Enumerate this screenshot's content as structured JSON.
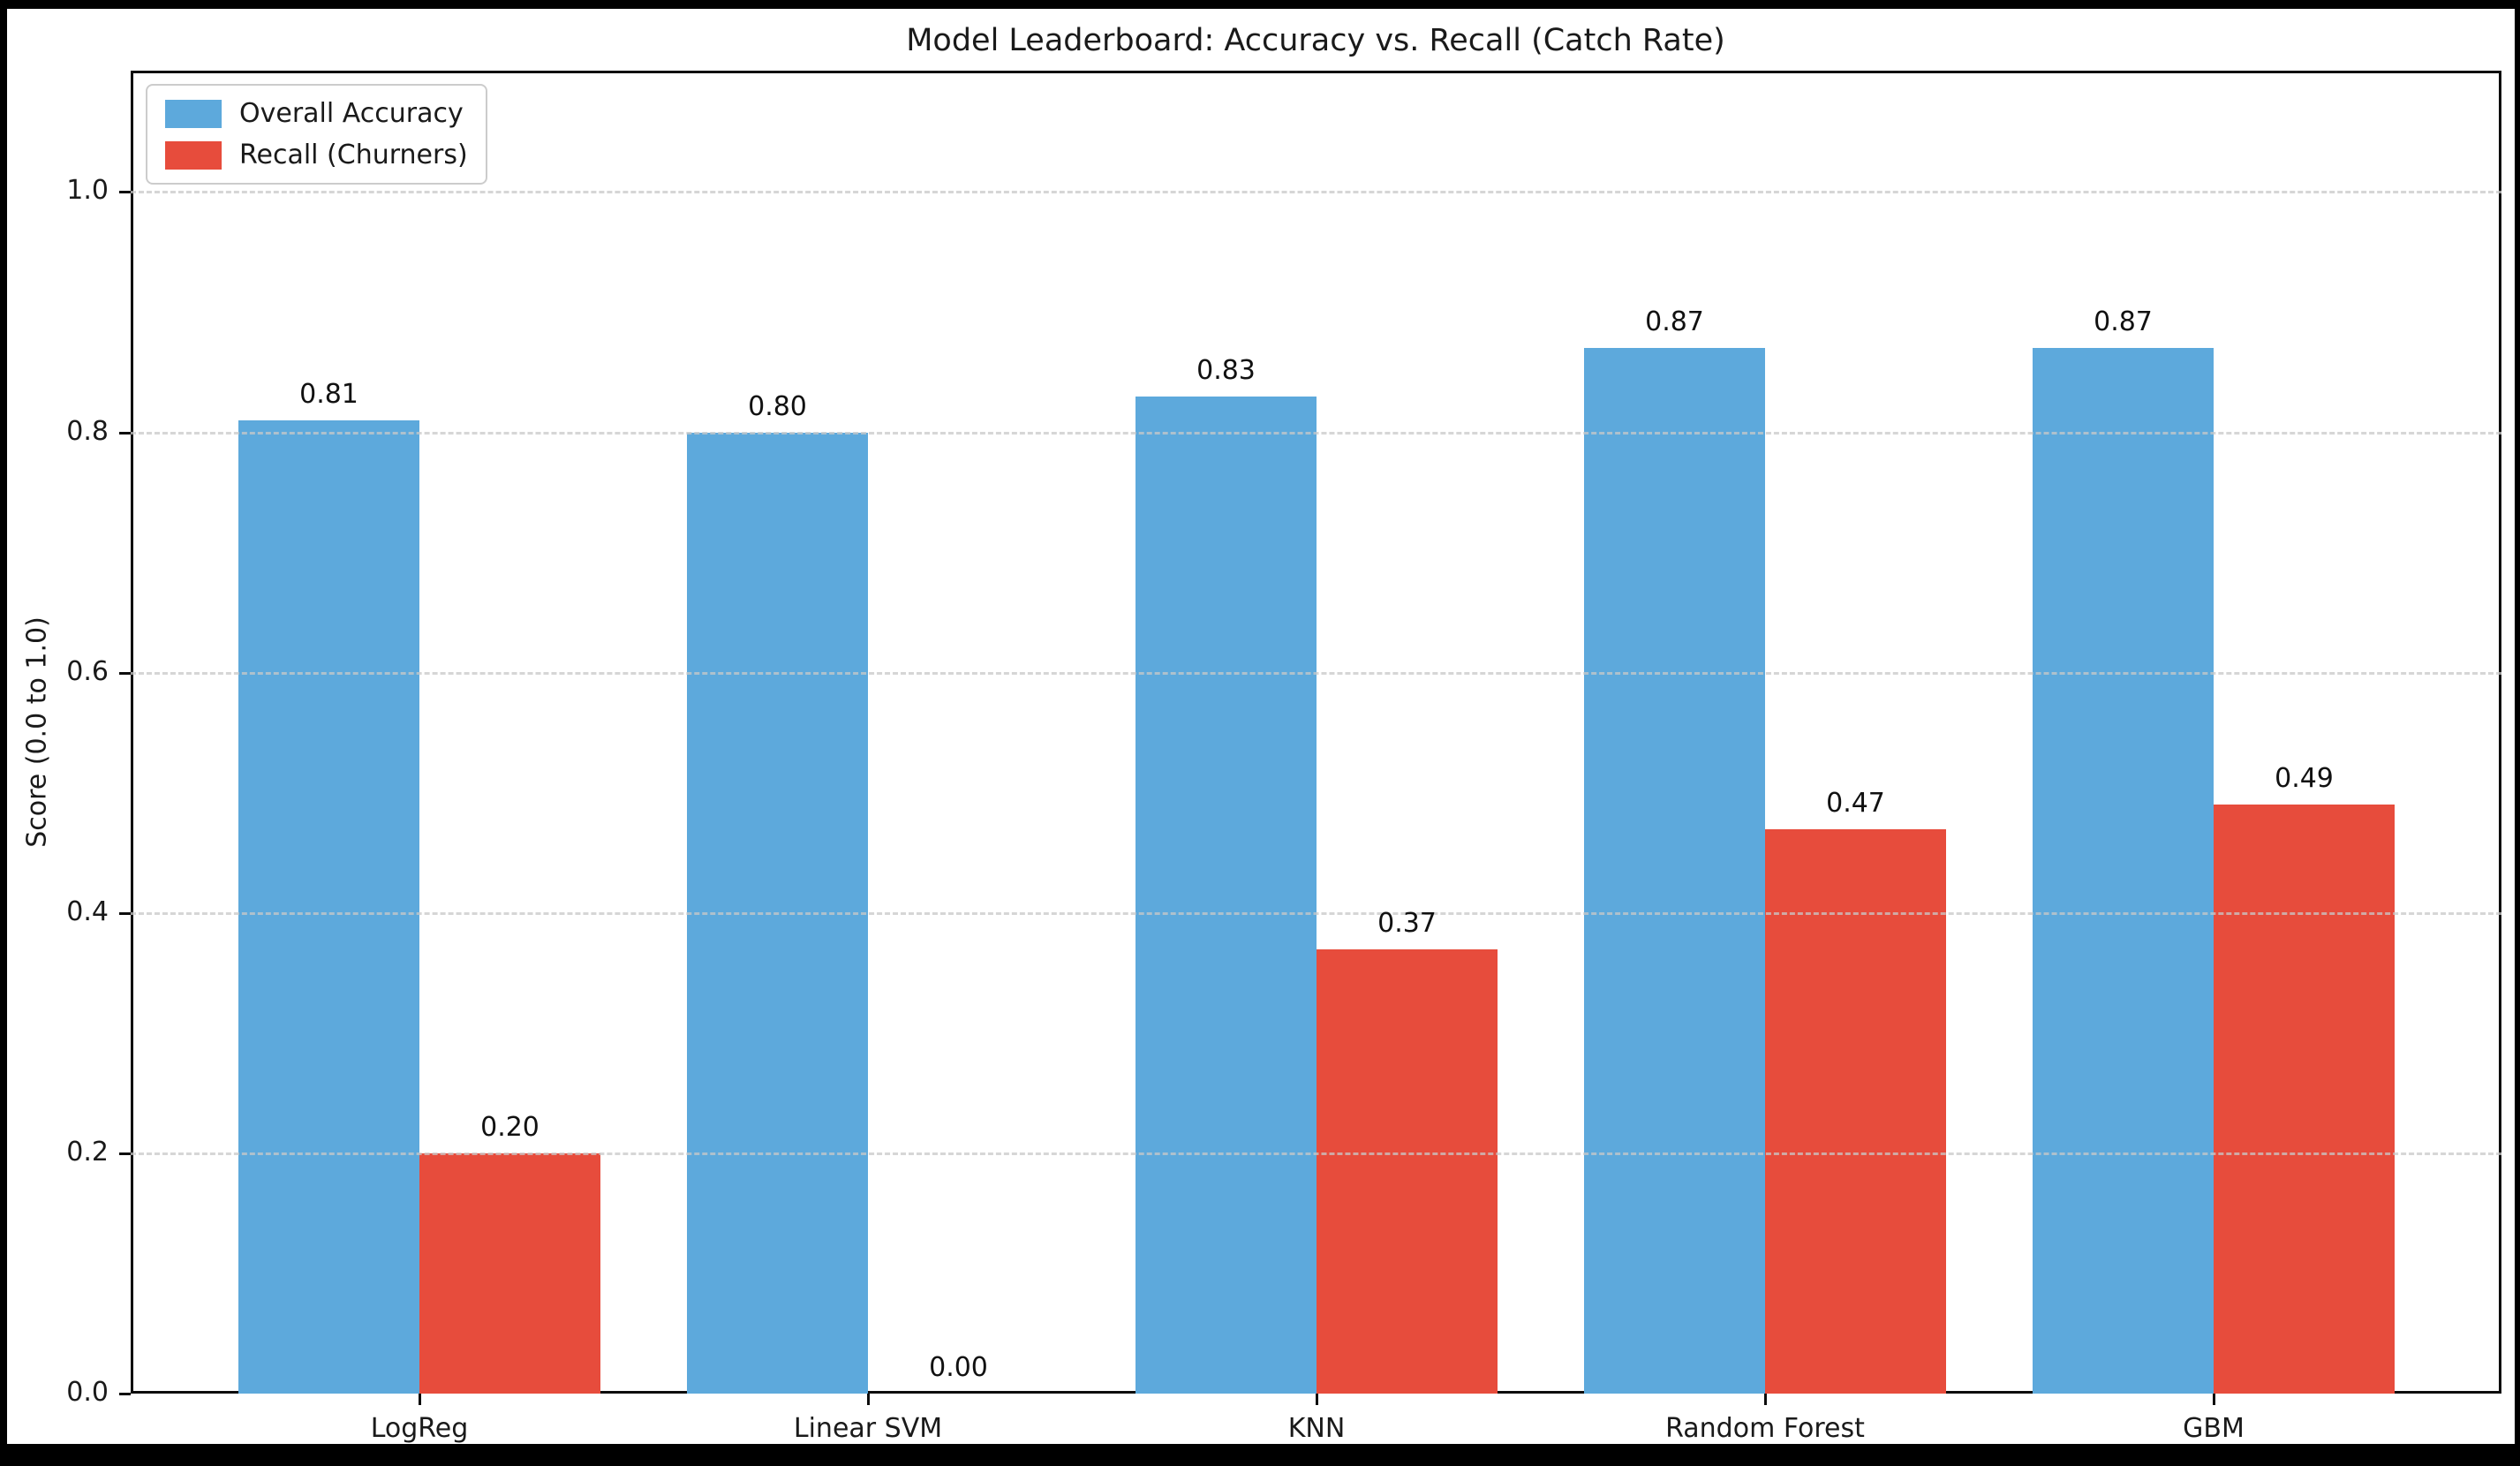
{
  "frame": {
    "background": "#000000",
    "figure_background": "#ffffff"
  },
  "chart_data": {
    "type": "bar",
    "title": "Model Leaderboard: Accuracy vs. Recall (Catch Rate)",
    "xlabel": "",
    "ylabel": "Score (0.0 to 1.0)",
    "categories": [
      "LogReg",
      "Linear SVM",
      "KNN",
      "Random Forest",
      "GBM"
    ],
    "series": [
      {
        "name": "Overall Accuracy",
        "color": "#5DA9DC",
        "values": [
          0.81,
          0.8,
          0.83,
          0.87,
          0.87
        ],
        "bar_labels": [
          "0.81",
          "0.80",
          "0.83",
          "0.87",
          "0.87"
        ]
      },
      {
        "name": "Recall (Churners)",
        "color": "#E74C3C",
        "values": [
          0.2,
          0.0,
          0.37,
          0.47,
          0.49
        ],
        "bar_labels": [
          "0.20",
          "0.00",
          "0.37",
          "0.47",
          "0.49"
        ]
      }
    ],
    "ylim": [
      0.0,
      1.101
    ],
    "yticks": [
      0.0,
      0.2,
      0.4,
      0.6,
      0.8,
      1.0
    ],
    "ytick_labels": [
      "0.0",
      "0.2",
      "0.4",
      "0.6",
      "0.8",
      "1.0"
    ],
    "grid": "horizontal-dashed",
    "grid_color": "#c9c9c9",
    "legend_position": "upper-left",
    "text_color": "#1a1a1a"
  }
}
